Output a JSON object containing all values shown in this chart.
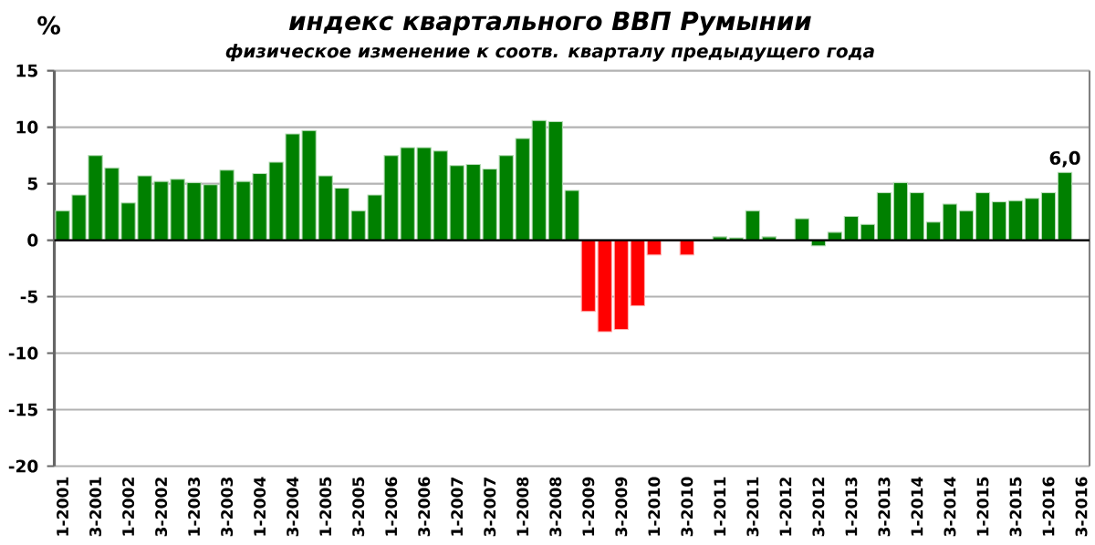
{
  "chart_data": {
    "type": "bar",
    "title": "индекс квартального ВВП Румынии",
    "subtitle": "физическое изменение к соотв. кварталу  предыдущего года",
    "ylabel": "%",
    "categories": [
      "1-2001",
      null,
      "3-2001",
      null,
      "1-2002",
      null,
      "3-2002",
      null,
      "1-2003",
      null,
      "3-2003",
      null,
      "1-2004",
      null,
      "3-2004",
      null,
      "1-2005",
      null,
      "3-2005",
      null,
      "1-2006",
      null,
      "3-2006",
      null,
      "1-2007",
      null,
      "3-2007",
      null,
      "1-2008",
      null,
      "3-2008",
      null,
      "1-2009",
      null,
      "3-2009",
      null,
      "1-2010",
      null,
      "3-2010",
      null,
      "1-2011",
      null,
      "3-2011",
      null,
      "1-2012",
      null,
      "3-2012",
      null,
      "1-2013",
      null,
      "3-2013",
      null,
      "1-2014",
      null,
      "3-2014",
      null,
      "1-2015",
      null,
      "3-2015",
      null,
      "1-2016",
      null,
      "3-2016"
    ],
    "values": [
      2.6,
      4.0,
      7.5,
      6.4,
      3.3,
      5.7,
      5.2,
      5.4,
      5.1,
      4.9,
      6.2,
      5.2,
      5.9,
      6.9,
      9.4,
      9.7,
      5.7,
      4.6,
      2.6,
      4.0,
      7.5,
      8.2,
      8.2,
      7.9,
      6.6,
      6.7,
      6.3,
      7.5,
      9.0,
      10.6,
      10.5,
      4.4,
      -6.3,
      -8.1,
      -7.9,
      -5.8,
      -1.3,
      0,
      -1.3,
      0,
      0.3,
      0.2,
      2.6,
      0.3,
      0,
      1.9,
      -0.5,
      0.7,
      2.1,
      1.4,
      4.2,
      5.1,
      4.2,
      1.6,
      3.2,
      2.6,
      4.2,
      3.4,
      3.5,
      3.7,
      4.2,
      6.0,
      null
    ],
    "colors": [
      "#008000",
      "#008000",
      "#008000",
      "#008000",
      "#008000",
      "#008000",
      "#008000",
      "#008000",
      "#008000",
      "#008000",
      "#008000",
      "#008000",
      "#008000",
      "#008000",
      "#008000",
      "#008000",
      "#008000",
      "#008000",
      "#008000",
      "#008000",
      "#008000",
      "#008000",
      "#008000",
      "#008000",
      "#008000",
      "#008000",
      "#008000",
      "#008000",
      "#008000",
      "#008000",
      "#008000",
      "#008000",
      "#ff0000",
      "#ff0000",
      "#ff0000",
      "#ff0000",
      "#ff0000",
      "#ff0000",
      "#ff0000",
      "#008000",
      "#008000",
      "#008000",
      "#008000",
      "#008000",
      "#008000",
      "#008000",
      "#008000",
      "#008000",
      "#008000",
      "#008000",
      "#008000",
      "#008000",
      "#008000",
      "#008000",
      "#008000",
      "#008000",
      "#008000",
      "#008000",
      "#008000",
      "#008000",
      "#008000",
      "#008000",
      "#008000"
    ],
    "value_labels": [
      null,
      null,
      null,
      null,
      null,
      null,
      null,
      null,
      null,
      null,
      null,
      null,
      null,
      null,
      null,
      null,
      null,
      null,
      null,
      null,
      null,
      null,
      null,
      null,
      null,
      null,
      null,
      null,
      null,
      null,
      null,
      null,
      null,
      null,
      null,
      null,
      null,
      null,
      null,
      null,
      null,
      null,
      null,
      null,
      null,
      null,
      null,
      null,
      null,
      null,
      null,
      null,
      null,
      null,
      null,
      null,
      null,
      null,
      null,
      null,
      null,
      "6,0",
      null
    ],
    "ylim": [
      -20,
      15
    ],
    "yticks": [
      -20,
      -15,
      -10,
      -5,
      0,
      5,
      10,
      15
    ],
    "grid": "y"
  }
}
